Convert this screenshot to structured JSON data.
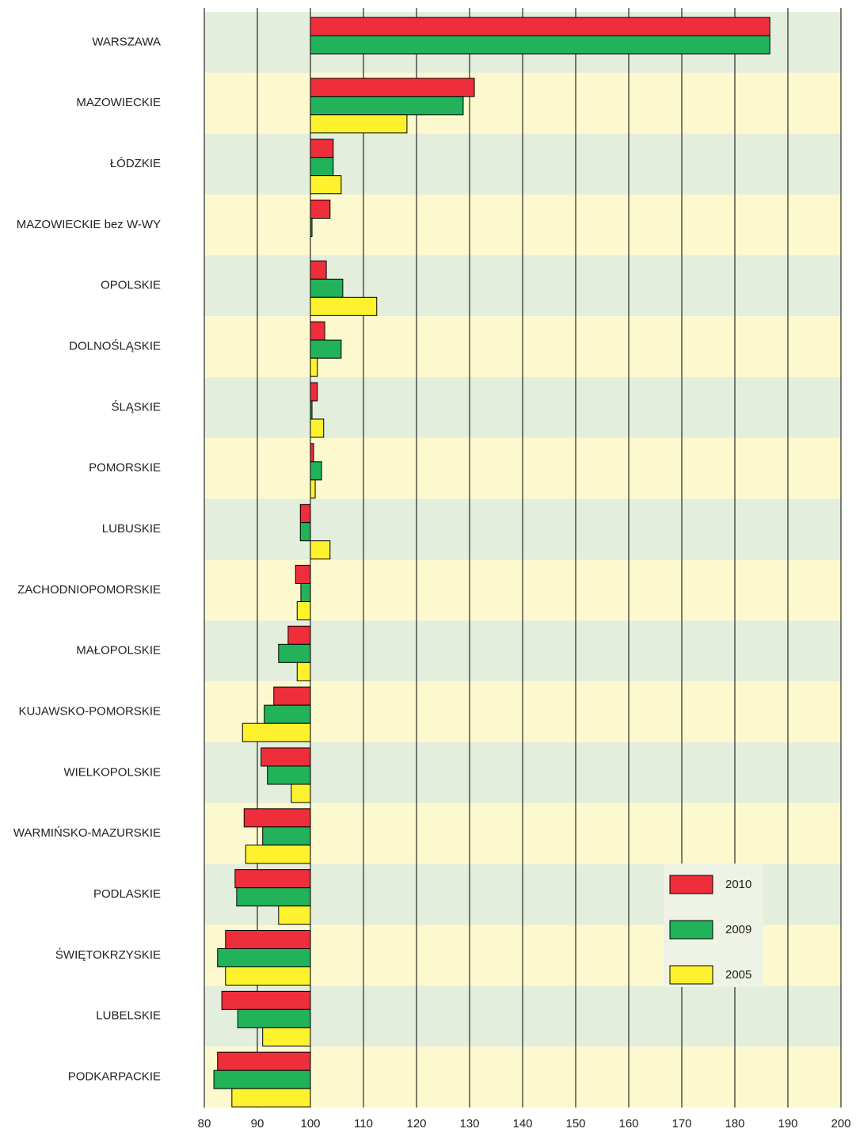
{
  "chart_data": {
    "type": "hbar",
    "categories": [
      "WARSZAWA",
      "MAZOWIECKIE",
      "ŁÓDZKIE",
      "MAZOWIECKIE bez W-WY",
      "OPOLSKIE",
      "DOLNOŚLĄSKIE",
      "ŚLĄSKIE",
      "POMORSKIE",
      "LUBUSKIE",
      "ZACHODNIOPOMORSKIE",
      "MAŁOPOLSKIE",
      "KUJAWSKO-POMORSKIE",
      "WIELKOPOLSKIE",
      "WARMIŃSKO-MAZURSKIE",
      "PODLASKIE",
      "ŚWIĘTOKRZYSKIE",
      "LUBELSKIE",
      "PODKARPACKIE"
    ],
    "series": [
      {
        "name": "2010",
        "color": "#ee2e3a",
        "values": [
          186.6,
          130.9,
          104.3,
          103.7,
          103.0,
          102.7,
          101.3,
          100.6,
          98.1,
          97.2,
          95.8,
          93.1,
          90.7,
          87.5,
          85.8,
          84.0,
          83.3,
          82.5
        ]
      },
      {
        "name": "2009",
        "color": "#21b25a",
        "values": [
          186.6,
          128.8,
          104.3,
          100.3,
          106.1,
          105.8,
          100.3,
          102.1,
          98.1,
          98.2,
          94.0,
          91.3,
          91.9,
          91.0,
          86.1,
          82.5,
          86.3,
          81.8
        ]
      },
      {
        "name": "2005",
        "color": "#fef22e",
        "values": [
          null,
          118.2,
          105.8,
          null,
          112.5,
          101.3,
          102.5,
          100.9,
          103.7,
          97.5,
          97.5,
          87.2,
          96.4,
          87.8,
          94.0,
          84.0,
          91.0,
          85.2
        ]
      }
    ],
    "baseline": 100,
    "xlim": [
      80,
      200
    ],
    "xticks": [
      80,
      90,
      100,
      110,
      120,
      130,
      140,
      150,
      160,
      170,
      180,
      190,
      200
    ],
    "grid": true,
    "legend": "lower right"
  }
}
